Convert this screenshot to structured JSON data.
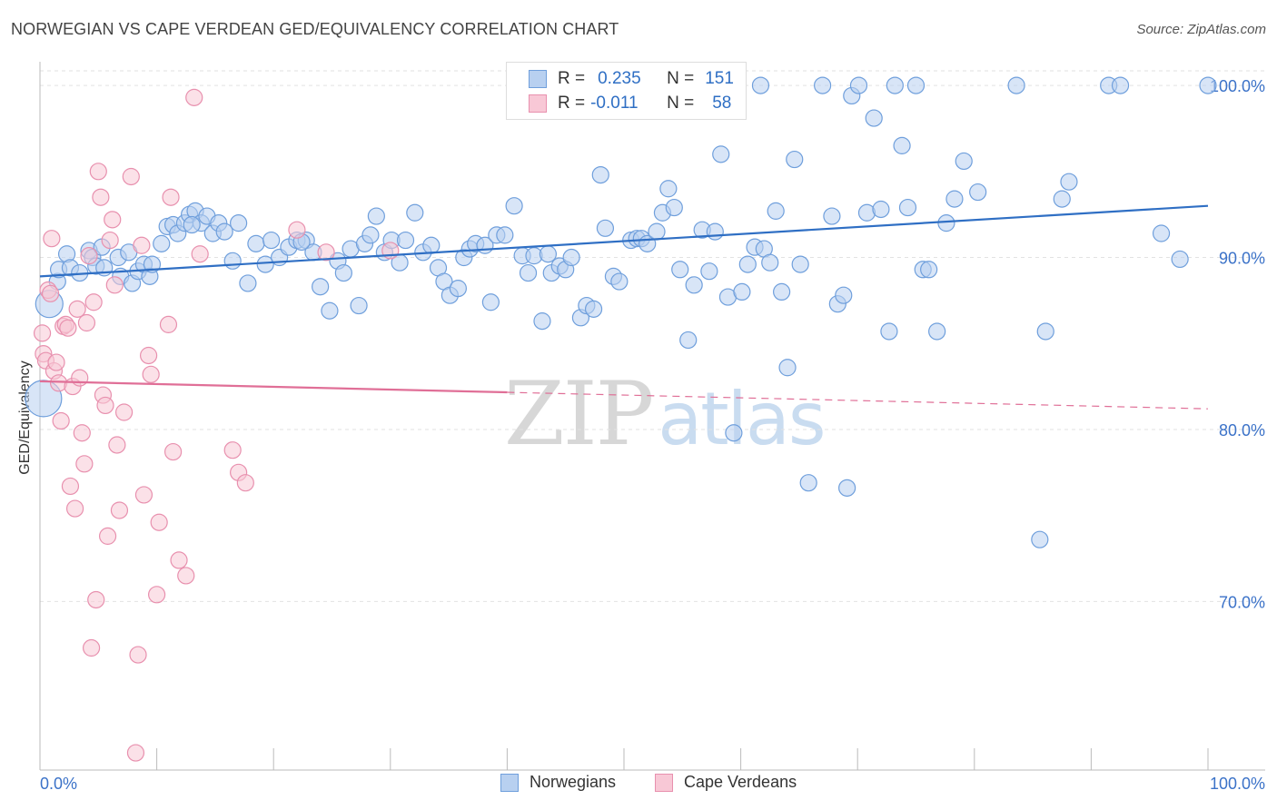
{
  "header": {
    "title": "NORWEGIAN VS CAPE VERDEAN GED/EQUIVALENCY CORRELATION CHART",
    "source": "Source: ZipAtlas.com"
  },
  "watermark": {
    "zip": "ZIP",
    "atlas": "atlas"
  },
  "legend": {
    "norwegians": {
      "r_label": "R =",
      "r_value": "0.235",
      "n_label": "N =",
      "n_value": "151"
    },
    "capeverdeans": {
      "r_label": "R =",
      "r_value": "-0.011",
      "n_label": "N =",
      "n_value": "58"
    }
  },
  "colors": {
    "blue_fill": "#b8d0f0",
    "blue_stroke": "#6f9fdc",
    "blue_line": "#2f6fc4",
    "pink_fill": "#f8c8d6",
    "pink_stroke": "#e890ae",
    "pink_line": "#e06f97",
    "tick_text": "#3b72c8",
    "grid": "#e2e2e2"
  },
  "chart_data": {
    "type": "scatter",
    "title": "NORWEGIAN VS CAPE VERDEAN GED/EQUIVALENCY CORRELATION CHART",
    "xlabel": "",
    "ylabel": "GED/Equivalency",
    "xlim": [
      0,
      100
    ],
    "ylim": [
      60.2,
      101.8
    ],
    "x_tick_labels": [
      "0.0%",
      "100.0%"
    ],
    "y_ticks": [
      70,
      80,
      90,
      100
    ],
    "y_tick_labels": [
      "70.0%",
      "80.0%",
      "90.0%",
      "100.0%"
    ],
    "grid": true,
    "legend_position": "top-center",
    "series": [
      {
        "name": "Norwegians",
        "r": 0.235,
        "n": 151,
        "trend": {
          "x": [
            0,
            100
          ],
          "y": [
            88.9,
            93.0
          ],
          "dashed_from": null
        },
        "points": [
          [
            0.3,
            81.8
          ],
          [
            0.8,
            87.3
          ],
          [
            1.5,
            88.6
          ],
          [
            1.6,
            89.3
          ],
          [
            2.3,
            90.2
          ],
          [
            2.6,
            89.4
          ],
          [
            3.4,
            89.1
          ],
          [
            4.2,
            90.4
          ],
          [
            4.5,
            90.0
          ],
          [
            4.8,
            89.5
          ],
          [
            5.5,
            89.4
          ],
          [
            6.7,
            90.0
          ],
          [
            6.9,
            88.9
          ],
          [
            7.6,
            90.3
          ],
          [
            7.9,
            88.5
          ],
          [
            8.4,
            89.2
          ],
          [
            8.9,
            89.6
          ],
          [
            9.4,
            88.9
          ],
          [
            9.6,
            89.6
          ],
          [
            10.4,
            90.8
          ],
          [
            10.9,
            91.8
          ],
          [
            11.4,
            91.9
          ],
          [
            11.8,
            91.4
          ],
          [
            12.4,
            92.0
          ],
          [
            12.8,
            92.5
          ],
          [
            13.3,
            92.7
          ],
          [
            13.8,
            92.0
          ],
          [
            14.3,
            92.4
          ],
          [
            14.8,
            91.4
          ],
          [
            15.3,
            92.0
          ],
          [
            15.8,
            91.5
          ],
          [
            16.5,
            89.8
          ],
          [
            17.0,
            92.0
          ],
          [
            17.8,
            88.5
          ],
          [
            18.5,
            90.8
          ],
          [
            19.3,
            89.6
          ],
          [
            19.8,
            91.0
          ],
          [
            20.5,
            90.0
          ],
          [
            21.3,
            90.6
          ],
          [
            22.0,
            91.0
          ],
          [
            22.8,
            91.0
          ],
          [
            23.4,
            90.3
          ],
          [
            24.0,
            88.3
          ],
          [
            24.8,
            86.9
          ],
          [
            25.5,
            89.8
          ],
          [
            26.0,
            89.1
          ],
          [
            26.6,
            90.5
          ],
          [
            27.3,
            87.2
          ],
          [
            27.8,
            90.8
          ],
          [
            28.3,
            91.3
          ],
          [
            28.8,
            92.4
          ],
          [
            29.5,
            90.3
          ],
          [
            30.1,
            91.0
          ],
          [
            30.8,
            89.7
          ],
          [
            31.3,
            91.0
          ],
          [
            32.1,
            92.6
          ],
          [
            32.8,
            90.3
          ],
          [
            33.5,
            90.7
          ],
          [
            34.1,
            89.4
          ],
          [
            34.6,
            88.6
          ],
          [
            35.1,
            87.8
          ],
          [
            35.8,
            88.2
          ],
          [
            36.3,
            90.0
          ],
          [
            36.8,
            90.5
          ],
          [
            37.3,
            90.8
          ],
          [
            38.1,
            90.7
          ],
          [
            38.6,
            87.4
          ],
          [
            39.1,
            91.3
          ],
          [
            39.8,
            91.3
          ],
          [
            40.6,
            93.0
          ],
          [
            41.3,
            90.1
          ],
          [
            41.8,
            89.1
          ],
          [
            42.3,
            90.1
          ],
          [
            43.0,
            86.3
          ],
          [
            43.5,
            90.2
          ],
          [
            43.8,
            89.1
          ],
          [
            44.5,
            89.5
          ],
          [
            45.0,
            89.3
          ],
          [
            45.5,
            90.0
          ],
          [
            46.3,
            86.5
          ],
          [
            46.8,
            87.2
          ],
          [
            47.4,
            87.0
          ],
          [
            48.0,
            94.8
          ],
          [
            48.4,
            91.7
          ],
          [
            49.1,
            88.9
          ],
          [
            49.6,
            88.6
          ],
          [
            50.6,
            91.0
          ],
          [
            51.1,
            91.1
          ],
          [
            51.5,
            91.1
          ],
          [
            52.0,
            90.8
          ],
          [
            52.8,
            91.5
          ],
          [
            53.3,
            92.6
          ],
          [
            53.8,
            94.0
          ],
          [
            54.3,
            92.9
          ],
          [
            54.8,
            89.3
          ],
          [
            55.5,
            85.2
          ],
          [
            56.0,
            88.4
          ],
          [
            56.7,
            91.6
          ],
          [
            57.3,
            89.2
          ],
          [
            57.8,
            91.5
          ],
          [
            58.3,
            96.0
          ],
          [
            58.9,
            87.7
          ],
          [
            59.4,
            79.8
          ],
          [
            60.1,
            88.0
          ],
          [
            60.6,
            89.6
          ],
          [
            61.2,
            90.6
          ],
          [
            61.7,
            100.0
          ],
          [
            62.0,
            90.5
          ],
          [
            62.5,
            89.7
          ],
          [
            63.0,
            92.7
          ],
          [
            63.5,
            88.0
          ],
          [
            64.0,
            83.6
          ],
          [
            64.6,
            95.7
          ],
          [
            65.1,
            89.6
          ],
          [
            65.8,
            76.9
          ],
          [
            67.0,
            100.0
          ],
          [
            67.8,
            92.4
          ],
          [
            68.3,
            87.3
          ],
          [
            68.8,
            87.8
          ],
          [
            69.5,
            99.4
          ],
          [
            70.1,
            100.0
          ],
          [
            70.8,
            92.6
          ],
          [
            71.4,
            98.1
          ],
          [
            72.0,
            92.8
          ],
          [
            72.7,
            85.7
          ],
          [
            73.2,
            100.0
          ],
          [
            73.8,
            96.5
          ],
          [
            74.3,
            92.9
          ],
          [
            75.0,
            100.0
          ],
          [
            75.6,
            89.3
          ],
          [
            76.1,
            89.3
          ],
          [
            76.8,
            85.7
          ],
          [
            77.6,
            92.0
          ],
          [
            78.3,
            93.4
          ],
          [
            79.1,
            95.6
          ],
          [
            80.3,
            93.8
          ],
          [
            83.6,
            100.0
          ],
          [
            85.6,
            73.6
          ],
          [
            86.1,
            85.7
          ],
          [
            87.5,
            93.4
          ],
          [
            88.1,
            94.4
          ],
          [
            91.5,
            100.0
          ],
          [
            92.5,
            100.0
          ],
          [
            96.0,
            91.4
          ],
          [
            97.6,
            89.9
          ],
          [
            100.0,
            100.0
          ],
          [
            43.9,
            100.0
          ],
          [
            69.1,
            76.6
          ],
          [
            22.4,
            90.9
          ],
          [
            13.0,
            91.9
          ],
          [
            5.3,
            90.6
          ]
        ]
      },
      {
        "name": "Cape Verdeans",
        "r": -0.011,
        "n": 58,
        "trend": {
          "x": [
            0,
            100
          ],
          "y": [
            82.8,
            81.2
          ],
          "dashed_from": 40
        },
        "points": [
          [
            0.2,
            85.6
          ],
          [
            0.3,
            84.4
          ],
          [
            0.5,
            84.0
          ],
          [
            0.7,
            88.1
          ],
          [
            0.9,
            87.9
          ],
          [
            1.0,
            91.1
          ],
          [
            1.2,
            83.4
          ],
          [
            1.4,
            83.9
          ],
          [
            1.6,
            82.7
          ],
          [
            1.8,
            80.5
          ],
          [
            2.0,
            86.0
          ],
          [
            2.2,
            86.1
          ],
          [
            2.4,
            85.9
          ],
          [
            2.6,
            76.7
          ],
          [
            2.8,
            82.5
          ],
          [
            3.0,
            75.4
          ],
          [
            3.2,
            87.0
          ],
          [
            3.4,
            83.0
          ],
          [
            3.6,
            79.8
          ],
          [
            3.8,
            78.0
          ],
          [
            4.0,
            86.2
          ],
          [
            4.2,
            90.1
          ],
          [
            4.4,
            67.3
          ],
          [
            4.6,
            87.4
          ],
          [
            4.8,
            70.1
          ],
          [
            5.0,
            95.0
          ],
          [
            5.2,
            93.5
          ],
          [
            5.4,
            82.0
          ],
          [
            5.6,
            81.4
          ],
          [
            5.8,
            73.8
          ],
          [
            6.0,
            91.0
          ],
          [
            6.2,
            92.2
          ],
          [
            6.4,
            88.4
          ],
          [
            6.6,
            79.1
          ],
          [
            6.8,
            75.3
          ],
          [
            7.2,
            81.0
          ],
          [
            7.8,
            94.7
          ],
          [
            8.2,
            61.2
          ],
          [
            8.4,
            66.9
          ],
          [
            8.7,
            90.7
          ],
          [
            8.9,
            76.2
          ],
          [
            9.3,
            84.3
          ],
          [
            9.5,
            83.2
          ],
          [
            10.0,
            70.4
          ],
          [
            10.2,
            74.6
          ],
          [
            11.0,
            86.1
          ],
          [
            11.2,
            93.5
          ],
          [
            11.4,
            78.7
          ],
          [
            11.9,
            72.4
          ],
          [
            12.5,
            71.5
          ],
          [
            13.2,
            99.3
          ],
          [
            13.7,
            90.2
          ],
          [
            16.5,
            78.8
          ],
          [
            17.0,
            77.5
          ],
          [
            17.6,
            76.9
          ],
          [
            22.0,
            91.6
          ],
          [
            24.5,
            90.3
          ],
          [
            30.0,
            90.4
          ]
        ]
      }
    ]
  },
  "bottom_legend": {
    "norwegians": "Norwegians",
    "capeverdeans": "Cape Verdeans"
  }
}
